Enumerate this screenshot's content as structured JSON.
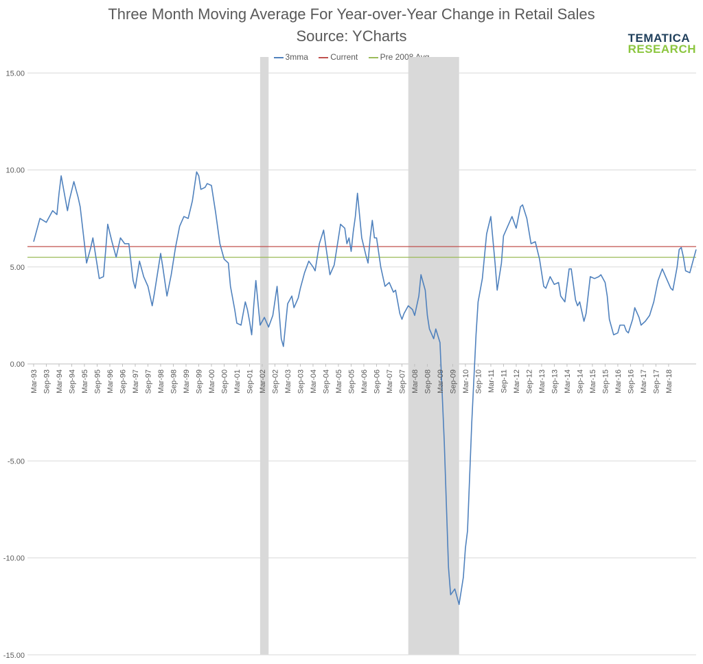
{
  "chart_data": {
    "type": "line",
    "title": "Three Month Moving Average For Year-over-Year Change in Retail Sales",
    "subtitle": "Source:  YCharts",
    "ylim": [
      -15,
      15
    ],
    "yticks": [
      "15.00",
      "10.00",
      "5.00",
      "0.00",
      "-5.00",
      "-10.00",
      "-15.00"
    ],
    "ytick_values": [
      15,
      10,
      5,
      0,
      -5,
      -10,
      -15
    ],
    "grid": true,
    "legend_position": "top-center",
    "x_tick_labels": [
      "Mar-93",
      "Sep-93",
      "Mar-94",
      "Sep-94",
      "Mar-95",
      "Sep-95",
      "Mar-96",
      "Sep-96",
      "Mar-97",
      "Sep-97",
      "Mar-98",
      "Sep-98",
      "Mar-99",
      "Sep-99",
      "Mar-00",
      "Sep-00",
      "Mar-01",
      "Sep-01",
      "Mar-02",
      "Sep-02",
      "Mar-03",
      "Sep-03",
      "Mar-04",
      "Sep-04",
      "Mar-05",
      "Sep-05",
      "Mar-06",
      "Sep-06",
      "Mar-07",
      "Sep-07",
      "Mar-08",
      "Sep-08",
      "Mar-09",
      "Sep-09",
      "Mar-10",
      "Sep-10",
      "Mar-11",
      "Sep-11",
      "Mar-12",
      "Sep-12",
      "Mar-13",
      "Sep-13",
      "Mar-14",
      "Sep-14",
      "Mar-15",
      "Sep-15",
      "Mar-16",
      "Sep-16",
      "Mar-17",
      "Sep-17",
      "Mar-18"
    ],
    "recession_shading": [
      {
        "start": "Feb-02",
        "end": "Jun-02"
      },
      {
        "start": "Dec-07",
        "end": "Dec-09"
      }
    ],
    "series": [
      {
        "name": "3mma",
        "color": "#4f81bd",
        "points": [
          [
            "Mar-93",
            6.3
          ],
          [
            "Jun-93",
            7.5
          ],
          [
            "Sep-93",
            7.3
          ],
          [
            "Dec-93",
            7.9
          ],
          [
            "Feb-94",
            7.7
          ],
          [
            "Mar-94",
            8.8
          ],
          [
            "Apr-94",
            9.7
          ],
          [
            "Jun-94",
            8.5
          ],
          [
            "Jul-94",
            7.9
          ],
          [
            "Aug-94",
            8.5
          ],
          [
            "Oct-94",
            9.4
          ],
          [
            "Dec-94",
            8.6
          ],
          [
            "Jan-95",
            8.1
          ],
          [
            "Mar-95",
            6.2
          ],
          [
            "Apr-95",
            5.2
          ],
          [
            "Jun-95",
            6.0
          ],
          [
            "Jul-95",
            6.5
          ],
          [
            "Sep-95",
            5.1
          ],
          [
            "Oct-95",
            4.4
          ],
          [
            "Dec-95",
            4.5
          ],
          [
            "Jan-96",
            5.8
          ],
          [
            "Feb-96",
            7.2
          ],
          [
            "Apr-96",
            6.3
          ],
          [
            "Jun-96",
            5.5
          ],
          [
            "Jul-96",
            6.0
          ],
          [
            "Aug-96",
            6.5
          ],
          [
            "Oct-96",
            6.2
          ],
          [
            "Dec-96",
            6.2
          ],
          [
            "Feb-97",
            4.3
          ],
          [
            "Mar-97",
            3.9
          ],
          [
            "May-97",
            5.3
          ],
          [
            "Jul-97",
            4.5
          ],
          [
            "Sep-97",
            4.0
          ],
          [
            "Nov-97",
            3.0
          ],
          [
            "Dec-97",
            3.6
          ],
          [
            "Mar-98",
            5.7
          ],
          [
            "Apr-98",
            5.0
          ],
          [
            "Jun-98",
            3.5
          ],
          [
            "Aug-98",
            4.6
          ],
          [
            "Oct-98",
            6.0
          ],
          [
            "Dec-98",
            7.1
          ],
          [
            "Feb-99",
            7.6
          ],
          [
            "Apr-99",
            7.5
          ],
          [
            "Jun-99",
            8.4
          ],
          [
            "Aug-99",
            9.9
          ],
          [
            "Sep-99",
            9.7
          ],
          [
            "Oct-99",
            9.0
          ],
          [
            "Dec-99",
            9.1
          ],
          [
            "Jan-00",
            9.3
          ],
          [
            "Mar-00",
            9.2
          ],
          [
            "May-00",
            7.8
          ],
          [
            "Jul-00",
            6.2
          ],
          [
            "Sep-00",
            5.4
          ],
          [
            "Nov-00",
            5.2
          ],
          [
            "Dec-00",
            4.0
          ],
          [
            "Feb-01",
            2.8
          ],
          [
            "Mar-01",
            2.1
          ],
          [
            "May-01",
            2.0
          ],
          [
            "Jul-01",
            3.2
          ],
          [
            "Aug-01",
            2.8
          ],
          [
            "Sep-01",
            2.2
          ],
          [
            "Oct-01",
            1.5
          ],
          [
            "Nov-01",
            3.0
          ],
          [
            "Dec-01",
            4.3
          ],
          [
            "Feb-02",
            2.0
          ],
          [
            "Apr-02",
            2.4
          ],
          [
            "Jun-02",
            1.9
          ],
          [
            "Aug-02",
            2.5
          ],
          [
            "Oct-02",
            4.0
          ],
          [
            "Dec-02",
            1.3
          ],
          [
            "Jan-03",
            0.9
          ],
          [
            "Mar-03",
            3.1
          ],
          [
            "May-03",
            3.5
          ],
          [
            "Jun-03",
            2.9
          ],
          [
            "Aug-03",
            3.4
          ],
          [
            "Sep-03",
            3.9
          ],
          [
            "Nov-03",
            4.7
          ],
          [
            "Jan-04",
            5.3
          ],
          [
            "Mar-04",
            5.0
          ],
          [
            "Apr-04",
            4.8
          ],
          [
            "Jun-04",
            6.2
          ],
          [
            "Aug-04",
            6.9
          ],
          [
            "Sep-04",
            6.1
          ],
          [
            "Nov-04",
            4.6
          ],
          [
            "Jan-05",
            5.1
          ],
          [
            "Mar-05",
            6.5
          ],
          [
            "Apr-05",
            7.2
          ],
          [
            "Jun-05",
            7.0
          ],
          [
            "Jul-05",
            6.2
          ],
          [
            "Aug-05",
            6.5
          ],
          [
            "Sep-05",
            5.8
          ],
          [
            "Oct-05",
            6.8
          ],
          [
            "Nov-05",
            7.6
          ],
          [
            "Dec-05",
            8.8
          ],
          [
            "Feb-06",
            6.5
          ],
          [
            "Apr-06",
            5.6
          ],
          [
            "May-06",
            5.2
          ],
          [
            "Jun-06",
            6.5
          ],
          [
            "Jul-06",
            7.4
          ],
          [
            "Aug-06",
            6.5
          ],
          [
            "Sep-06",
            6.5
          ],
          [
            "Nov-06",
            5.0
          ],
          [
            "Jan-07",
            4.0
          ],
          [
            "Mar-07",
            4.2
          ],
          [
            "May-07",
            3.7
          ],
          [
            "Jun-07",
            3.8
          ],
          [
            "Aug-07",
            2.6
          ],
          [
            "Sep-07",
            2.3
          ],
          [
            "Oct-07",
            2.6
          ],
          [
            "Dec-07",
            3.0
          ],
          [
            "Feb-08",
            2.8
          ],
          [
            "Mar-08",
            2.5
          ],
          [
            "May-08",
            3.5
          ],
          [
            "Jun-08",
            4.6
          ],
          [
            "Aug-08",
            3.8
          ],
          [
            "Sep-08",
            2.5
          ],
          [
            "Oct-08",
            1.8
          ],
          [
            "Dec-08",
            1.3
          ],
          [
            "Jan-09",
            1.8
          ],
          [
            "Mar-09",
            1.1
          ],
          [
            "May-09",
            -4.0
          ],
          [
            "Jul-09",
            -10.5
          ],
          [
            "Aug-09",
            -11.9
          ],
          [
            "Oct-09",
            -11.6
          ],
          [
            "Dec-09",
            -12.4
          ],
          [
            "Feb-10",
            -11.0
          ],
          [
            "Mar-10",
            -9.5
          ],
          [
            "Apr-10",
            -8.6
          ],
          [
            "Jun-10",
            -3.0
          ],
          [
            "Aug-10",
            1.5
          ],
          [
            "Sep-10",
            3.2
          ],
          [
            "Nov-10",
            4.4
          ],
          [
            "Jan-11",
            6.7
          ],
          [
            "Mar-11",
            7.6
          ],
          [
            "May-11",
            5.2
          ],
          [
            "Jun-11",
            3.8
          ],
          [
            "Aug-11",
            5.2
          ],
          [
            "Sep-11",
            6.6
          ],
          [
            "Nov-11",
            7.1
          ],
          [
            "Jan-12",
            7.6
          ],
          [
            "Mar-12",
            7.0
          ],
          [
            "May-12",
            8.1
          ],
          [
            "Jun-12",
            8.2
          ],
          [
            "Aug-12",
            7.5
          ],
          [
            "Oct-12",
            6.2
          ],
          [
            "Dec-12",
            6.3
          ],
          [
            "Feb-13",
            5.4
          ],
          [
            "Apr-13",
            4.0
          ],
          [
            "May-13",
            3.9
          ],
          [
            "Jul-13",
            4.5
          ],
          [
            "Sep-13",
            4.1
          ],
          [
            "Nov-13",
            4.2
          ],
          [
            "Dec-13",
            3.5
          ],
          [
            "Feb-14",
            3.2
          ],
          [
            "Apr-14",
            4.9
          ],
          [
            "May-14",
            4.9
          ],
          [
            "Jul-14",
            3.3
          ],
          [
            "Aug-14",
            3.0
          ],
          [
            "Sep-14",
            3.2
          ],
          [
            "Nov-14",
            2.2
          ],
          [
            "Dec-14",
            2.6
          ],
          [
            "Feb-15",
            4.5
          ],
          [
            "Apr-15",
            4.4
          ],
          [
            "Jun-15",
            4.5
          ],
          [
            "Jul-15",
            4.6
          ],
          [
            "Sep-15",
            4.2
          ],
          [
            "Oct-15",
            3.5
          ],
          [
            "Nov-15",
            2.3
          ],
          [
            "Jan-16",
            1.5
          ],
          [
            "Mar-16",
            1.6
          ],
          [
            "Apr-16",
            2.0
          ],
          [
            "Jun-16",
            2.0
          ],
          [
            "Jul-16",
            1.7
          ],
          [
            "Aug-16",
            1.6
          ],
          [
            "Oct-16",
            2.3
          ],
          [
            "Nov-16",
            2.9
          ],
          [
            "Jan-17",
            2.4
          ],
          [
            "Feb-17",
            2.0
          ],
          [
            "Apr-17",
            2.2
          ],
          [
            "Jun-17",
            2.5
          ],
          [
            "Aug-17",
            3.2
          ],
          [
            "Oct-17",
            4.3
          ],
          [
            "Dec-17",
            4.9
          ],
          [
            "Feb-18",
            4.4
          ],
          [
            "Apr-18",
            3.9
          ],
          [
            "May-18",
            3.8
          ],
          [
            "Jul-18",
            5.0
          ],
          [
            "Aug-18",
            5.9
          ],
          [
            "Sep-18",
            6.0
          ],
          [
            "Oct-18",
            5.5
          ],
          [
            "Nov-18",
            4.8
          ],
          [
            "Jan-19",
            4.7
          ],
          [
            "Mar-19",
            5.5
          ],
          [
            "Apr-19",
            5.9
          ]
        ]
      },
      {
        "name": "Current",
        "color": "#c0504d",
        "constant": 6.05
      },
      {
        "name": "Pre 2008 Avg",
        "color": "#9bbb59",
        "constant": 5.5
      }
    ]
  },
  "logo": {
    "line1": "TEMATICA",
    "line2": "RESEARCH"
  }
}
